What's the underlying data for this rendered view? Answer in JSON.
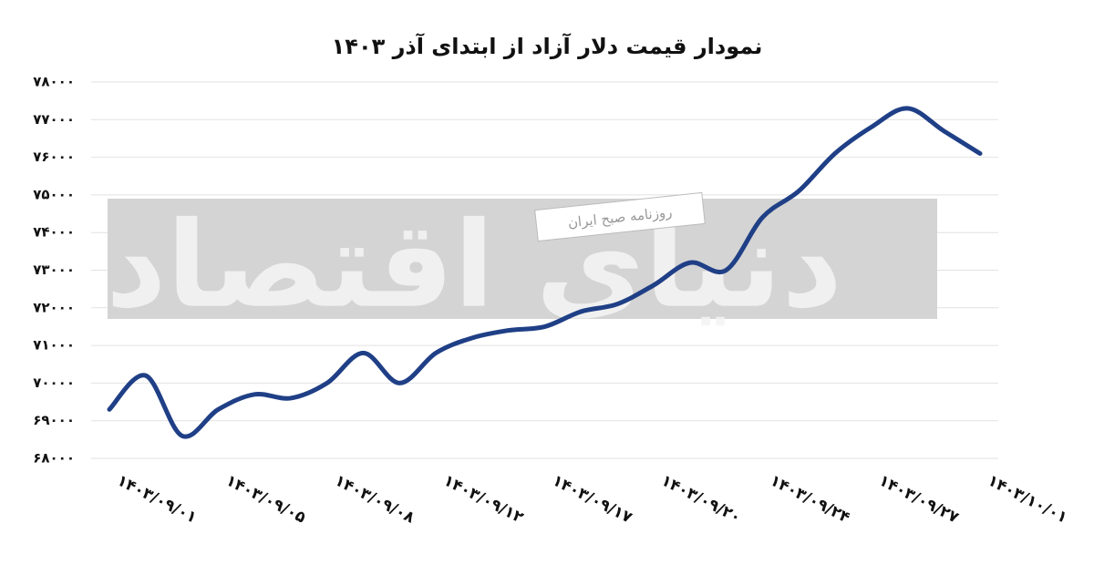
{
  "chart_data": {
    "type": "line",
    "title": "نمودار قیمت دلار آزاد از ابتدای آذر ۱۴۰۳",
    "watermark": "روزنامه صبح ایران",
    "watermark_logo": "دنیای اقتصاد",
    "categories": [
      "۱۴۰۳/۰۹/۰۱",
      null,
      null,
      "۱۴۰۳/۰۹/۰۵",
      null,
      null,
      "۱۴۰۳/۰۹/۰۸",
      null,
      null,
      "۱۴۰۳/۰۹/۱۲",
      null,
      null,
      "۱۴۰۳/۰۹/۱۷",
      null,
      null,
      "۱۴۰۳/۰۹/۲۰",
      null,
      null,
      "۱۴۰۳/۰۹/۲۴",
      null,
      null,
      "۱۴۰۳/۰۹/۲۷",
      null,
      null,
      "۱۴۰۳/۱۰/۰۱"
    ],
    "values": [
      69300,
      70200,
      68600,
      69300,
      69700,
      69600,
      70000,
      70800,
      70000,
      70800,
      71200,
      71400,
      71500,
      71900,
      72100,
      72600,
      73200,
      73000,
      74400,
      75100,
      76100,
      76800,
      77300,
      76700,
      76100
    ],
    "color": "#1f3f86",
    "ylim": [
      68000,
      78000
    ],
    "yticks": [
      {
        "value": 68000,
        "label": "۶۸۰۰۰"
      },
      {
        "value": 69000,
        "label": "۶۹۰۰۰"
      },
      {
        "value": 70000,
        "label": "۷۰۰۰۰"
      },
      {
        "value": 71000,
        "label": "۷۱۰۰۰"
      },
      {
        "value": 72000,
        "label": "۷۲۰۰۰"
      },
      {
        "value": 73000,
        "label": "۷۳۰۰۰"
      },
      {
        "value": 74000,
        "label": "۷۴۰۰۰"
      },
      {
        "value": 75000,
        "label": "۷۵۰۰۰"
      },
      {
        "value": 76000,
        "label": "۷۶۰۰۰"
      },
      {
        "value": 77000,
        "label": "۷۷۰۰۰"
      },
      {
        "value": 78000,
        "label": "۷۸۰۰۰"
      }
    ],
    "grid": true
  }
}
